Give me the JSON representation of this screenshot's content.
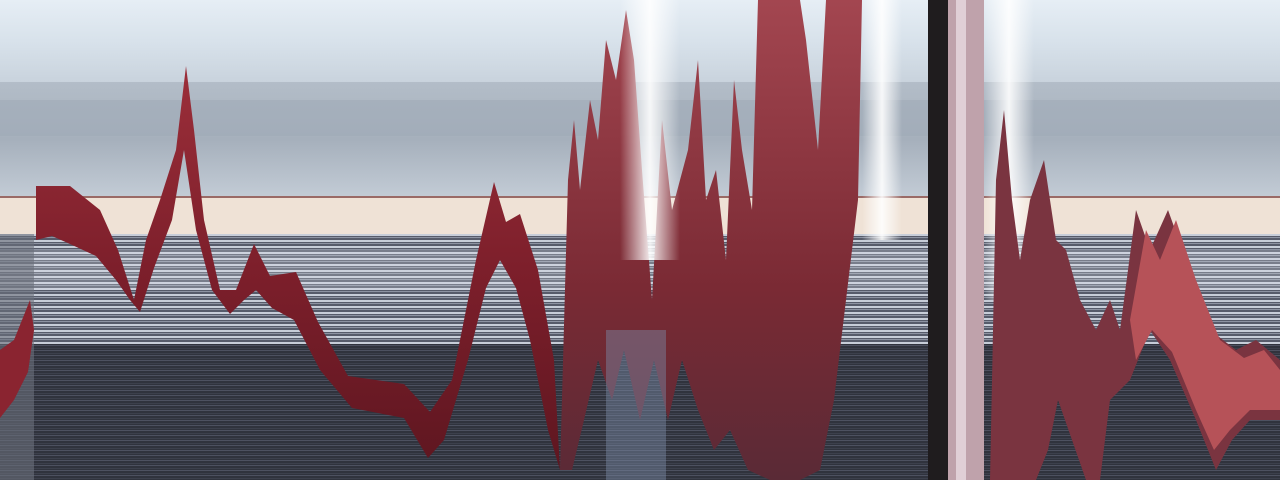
{
  "image": {
    "kind": "slit-scan photograph",
    "colors": {
      "sky_top": "#dfe8f0",
      "sky_mid": "#c6d1dc",
      "sky_band": "#aab6c3",
      "sand": "#efe3d7",
      "horizon_line": "#9a6a66",
      "stripe_light": "#d3d9e3",
      "stripe_mid": "#8c93a3",
      "stripe_dark": "#3b3f4c",
      "floor": "#2b2e37",
      "ribbon": "#8a2430",
      "ribbon_dark": "#5a1620",
      "ribbon_light": "#b04a52",
      "glow": "#f4f8ff",
      "post": "#1f1c1e"
    }
  }
}
